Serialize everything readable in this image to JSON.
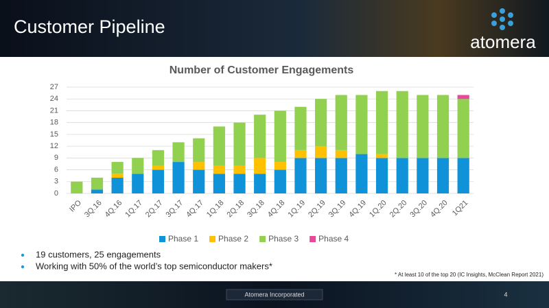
{
  "header": {
    "title": "Customer Pipeline",
    "logo": "atomera"
  },
  "chart_data": {
    "type": "stacked_bar",
    "title": "Number of Customer Engagements",
    "categories": [
      "IPO",
      "3Q.16",
      "4Q.16",
      "1Q.17",
      "2Q.17",
      "3Q.17",
      "4Q.17",
      "1Q.18",
      "2Q.18",
      "3Q.18",
      "4Q.18",
      "1Q.19",
      "2Q.19",
      "3Q.19",
      "4Q.19",
      "1Q.20",
      "2Q.20",
      "3Q.20",
      "4Q.20",
      "1Q21"
    ],
    "series": [
      {
        "name": "Phase 1",
        "color": "#0f92d8",
        "values": [
          0,
          1,
          4,
          5,
          6,
          8,
          6,
          5,
          5,
          5,
          6,
          9,
          9,
          9,
          10,
          9,
          9,
          9,
          9,
          9
        ]
      },
      {
        "name": "Phase 2",
        "color": "#ffc000",
        "values": [
          0,
          0,
          1,
          0,
          1,
          0,
          2,
          2,
          2,
          4,
          2,
          2,
          3,
          2,
          0,
          1,
          0,
          0,
          0,
          0
        ]
      },
      {
        "name": "Phase 3",
        "color": "#92d050",
        "values": [
          3,
          3,
          3,
          4,
          4,
          5,
          6,
          10,
          11,
          11,
          13,
          11,
          12,
          14,
          15,
          16,
          17,
          16,
          16,
          15
        ]
      },
      {
        "name": "Phase 4",
        "color": "#e8479a",
        "values": [
          0,
          0,
          0,
          0,
          0,
          0,
          0,
          0,
          0,
          0,
          0,
          0,
          0,
          0,
          0,
          0,
          0,
          0,
          0,
          1
        ]
      }
    ],
    "ylim": [
      0,
      27
    ],
    "yticks": [
      0,
      3,
      6,
      9,
      12,
      15,
      18,
      21,
      24,
      27
    ],
    "grid": true,
    "legend": "bottom"
  },
  "bullets": [
    "19 customers, 25 engagements",
    "Working with 50% of the world’s top semiconductor makers*"
  ],
  "footnote": "* At least 10 of the top 20 (IC Insights, McClean Report 2021)",
  "footer": {
    "company": "Atomera Incorporated",
    "page": 4
  }
}
